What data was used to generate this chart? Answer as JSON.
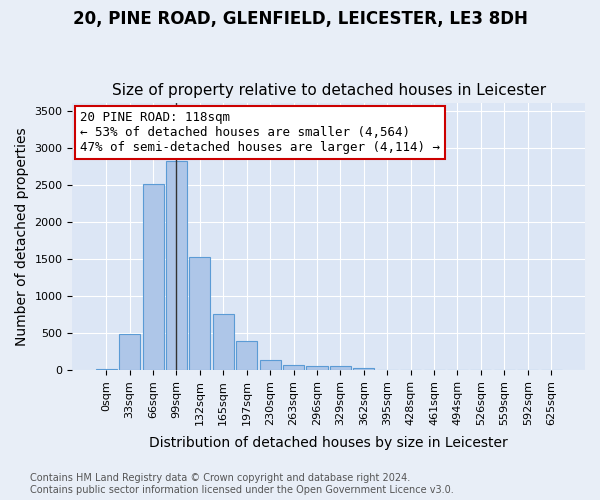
{
  "title_line1": "20, PINE ROAD, GLENFIELD, LEICESTER, LE3 8DH",
  "title_line2": "Size of property relative to detached houses in Leicester",
  "xlabel": "Distribution of detached houses by size in Leicester",
  "ylabel": "Number of detached properties",
  "bar_values": [
    20,
    480,
    2510,
    2820,
    1520,
    750,
    390,
    140,
    70,
    55,
    55,
    30,
    5,
    0,
    0,
    0,
    0,
    0,
    0,
    0
  ],
  "bin_labels": [
    "0sqm",
    "33sqm",
    "66sqm",
    "99sqm",
    "132sqm",
    "165sqm",
    "197sqm",
    "230sqm",
    "263sqm",
    "296sqm",
    "329sqm",
    "362sqm",
    "395sqm",
    "428sqm",
    "461sqm",
    "494sqm",
    "526sqm",
    "559sqm",
    "592sqm",
    "625sqm"
  ],
  "bar_color": "#aec6e8",
  "bar_edge_color": "#5b9bd5",
  "property_bin_index": 3,
  "highlight_line_color": "#333333",
  "annotation_text_line1": "20 PINE ROAD: 118sqm",
  "annotation_text_line2": "← 53% of detached houses are smaller (4,564)",
  "annotation_text_line3": "47% of semi-detached houses are larger (4,114) →",
  "annotation_box_color": "#ffffff",
  "annotation_box_edge_color": "#cc0000",
  "ylim": [
    0,
    3600
  ],
  "yticks": [
    0,
    500,
    1000,
    1500,
    2000,
    2500,
    3000,
    3500
  ],
  "background_color": "#e8eef7",
  "plot_area_color": "#dce6f5",
  "grid_color": "#ffffff",
  "footer_line1": "Contains HM Land Registry data © Crown copyright and database right 2024.",
  "footer_line2": "Contains public sector information licensed under the Open Government Licence v3.0.",
  "title_fontsize": 12,
  "subtitle_fontsize": 11,
  "axis_label_fontsize": 10,
  "tick_fontsize": 8,
  "annotation_fontsize": 9,
  "footer_fontsize": 7
}
